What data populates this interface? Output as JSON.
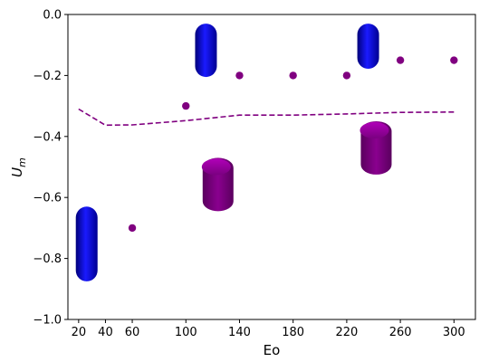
{
  "chart_data": {
    "type": "scatter",
    "title": "",
    "xlabel": "Eo",
    "ylabel_base": "U",
    "ylabel_sub": "m",
    "xlim": [
      12,
      316
    ],
    "ylim": [
      -1.0,
      0.0
    ],
    "x_ticks": [
      20,
      40,
      60,
      100,
      140,
      180,
      220,
      260,
      300
    ],
    "y_ticks": [
      0.0,
      -0.2,
      -0.4,
      -0.6,
      -0.8,
      -1.0
    ],
    "y_tick_labels": [
      "0.0",
      "−0.2",
      "−0.4",
      "−0.6",
      "−0.8",
      "−1.0"
    ],
    "grid": false,
    "series": [
      {
        "kind": "scatter",
        "color": "#800080",
        "x": [
          60,
          100,
          140,
          180,
          220,
          260,
          300
        ],
        "y": [
          -0.7,
          -0.3,
          -0.2,
          -0.2,
          -0.2,
          -0.15,
          -0.15
        ]
      },
      {
        "kind": "line-dashed",
        "color": "#800080",
        "x": [
          20,
          40,
          60,
          100,
          140,
          180,
          220,
          260,
          300
        ],
        "y": [
          -0.31,
          -0.363,
          -0.362,
          -0.348,
          -0.33,
          -0.33,
          -0.326,
          -0.321,
          -0.32
        ]
      }
    ],
    "bubble_shapes": [
      {
        "icon": "blue-bubble-icon",
        "color": "#0000ee",
        "x": 26,
        "y_top": -0.63,
        "y_bottom": -0.875
      },
      {
        "icon": "blue-bubble-icon",
        "color": "#0000ee",
        "x": 115,
        "y_top": -0.03,
        "y_bottom": -0.205
      },
      {
        "icon": "blue-bubble-icon",
        "color": "#0000ee",
        "x": 236,
        "y_top": -0.03,
        "y_bottom": -0.178
      },
      {
        "icon": "magenta-bubble-icon",
        "color": "#8a0090",
        "x": 124,
        "y_top": -0.47,
        "y_bottom": -0.645
      },
      {
        "icon": "magenta-bubble-icon",
        "color": "#8a0090",
        "x": 242,
        "y_top": -0.35,
        "y_bottom": -0.525
      }
    ]
  }
}
